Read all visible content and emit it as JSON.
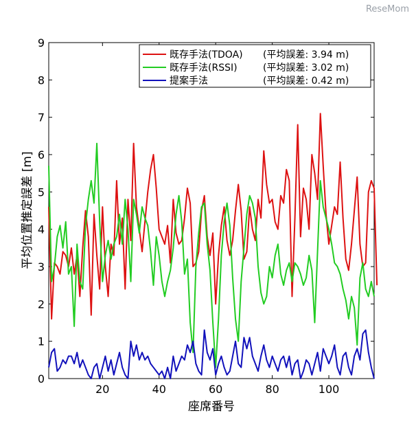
{
  "watermark": "ReseMom",
  "chart_data": {
    "type": "line",
    "title": "",
    "xlabel": "座席番号",
    "ylabel": "平均位置推定誤差 [m]",
    "xlim": [
      1,
      116
    ],
    "ylim": [
      0,
      9
    ],
    "x_ticks": [
      20,
      40,
      60,
      80,
      100
    ],
    "y_ticks": [
      0,
      1,
      2,
      3,
      4,
      5,
      6,
      7,
      8,
      9
    ],
    "grid": false,
    "legend_position": "top-right",
    "x_start": 1,
    "series": [
      {
        "name": "既存手法(TDOA)",
        "error_label": "(平均誤差: 3.94 m)",
        "color": "#dd1111",
        "values": [
          4.6,
          1.6,
          3.1,
          3.0,
          2.8,
          3.4,
          3.3,
          3.0,
          3.5,
          2.8,
          3.3,
          2.2,
          3.5,
          4.5,
          3.8,
          1.7,
          4.4,
          3.3,
          2.4,
          4.6,
          3.0,
          2.2,
          3.6,
          3.3,
          5.3,
          3.6,
          4.3,
          2.4,
          4.8,
          3.7,
          6.3,
          4.6,
          4.0,
          3.4,
          4.2,
          5.0,
          5.6,
          6.0,
          5.1,
          4.0,
          3.8,
          3.6,
          4.1,
          3.1,
          4.8,
          3.9,
          3.6,
          3.7,
          4.3,
          5.1,
          4.7,
          3.0,
          3.1,
          3.4,
          4.5,
          4.9,
          3.8,
          3.3,
          3.9,
          2.0,
          3.3,
          4.1,
          4.6,
          3.7,
          3.3,
          3.7,
          4.5,
          5.2,
          4.5,
          3.2,
          3.4,
          4.6,
          4.0,
          3.7,
          4.8,
          4.3,
          6.1,
          5.2,
          4.7,
          4.8,
          4.2,
          4.0,
          4.9,
          4.7,
          5.6,
          5.3,
          2.2,
          4.3,
          6.8,
          3.8,
          5.1,
          4.8,
          4.0,
          6.0,
          5.5,
          4.8,
          7.1,
          5.7,
          4.4,
          3.6,
          4.1,
          4.6,
          4.4,
          5.8,
          4.3,
          3.2,
          2.9,
          3.6,
          4.5,
          5.4,
          3.6,
          3.0,
          3.1,
          5.0,
          5.3,
          5.1,
          2.5
        ],
        "description": ""
      },
      {
        "name": "既存手法(RSSI)",
        "error_label": "(平均誤差: 3.02 m)",
        "color": "#22cc22",
        "values": [
          5.7,
          2.6,
          3.0,
          3.8,
          4.1,
          3.5,
          4.2,
          2.8,
          3.0,
          1.4,
          3.6,
          2.6,
          2.4,
          4.1,
          4.8,
          5.3,
          4.7,
          6.3,
          4.2,
          2.6,
          3.3,
          3.7,
          3.2,
          3.6,
          3.8,
          4.4,
          3.6,
          4.8,
          4.0,
          2.6,
          4.8,
          4.4,
          3.9,
          4.6,
          4.3,
          4.1,
          3.4,
          2.5,
          3.8,
          3.3,
          2.6,
          2.2,
          2.6,
          2.9,
          3.5,
          4.4,
          4.9,
          4.2,
          2.8,
          3.2,
          1.5,
          0.7,
          3.0,
          3.9,
          4.6,
          4.7,
          3.6,
          2.9,
          1.5,
          0.3,
          1.6,
          3.3,
          4.2,
          4.7,
          4.1,
          2.7,
          1.6,
          1.0,
          2.6,
          3.5,
          4.4,
          4.9,
          4.7,
          4.3,
          3.0,
          2.3,
          2.0,
          2.2,
          3.0,
          2.7,
          3.3,
          3.6,
          2.8,
          2.5,
          2.9,
          3.1,
          2.6,
          3.1,
          3.0,
          2.8,
          2.5,
          2.7,
          3.3,
          2.9,
          1.5,
          3.4,
          5.3,
          4.6,
          4.3,
          4.0,
          3.6,
          3.1,
          3.0,
          2.8,
          2.4,
          2.1,
          1.6,
          2.2,
          1.9,
          0.9,
          2.7,
          3.1,
          2.4,
          2.2,
          2.6,
          2.2
        ],
        "description": ""
      },
      {
        "name": "提案手法",
        "error_label": "(平均誤差: 0.42 m)",
        "color": "#1111bb",
        "values": [
          0.3,
          0.7,
          0.8,
          0.2,
          0.3,
          0.5,
          0.4,
          0.6,
          0.6,
          0.4,
          0.7,
          0.3,
          0.5,
          0.3,
          0.1,
          0.0,
          0.3,
          0.4,
          0.0,
          0.3,
          0.6,
          0.2,
          0.5,
          0.1,
          0.4,
          0.7,
          0.3,
          0.1,
          0.0,
          1.0,
          0.6,
          0.9,
          0.5,
          0.7,
          0.5,
          0.6,
          0.4,
          0.3,
          0.2,
          0.1,
          0.2,
          0.0,
          0.3,
          0.0,
          0.6,
          0.2,
          0.4,
          0.6,
          0.5,
          0.9,
          0.7,
          1.0,
          0.4,
          0.2,
          0.1,
          1.3,
          0.7,
          0.5,
          0.8,
          0.1,
          0.4,
          0.6,
          0.3,
          0.1,
          0.2,
          0.6,
          1.0,
          0.4,
          0.3,
          1.1,
          0.8,
          1.1,
          0.6,
          0.4,
          0.2,
          0.6,
          0.9,
          0.5,
          0.3,
          0.6,
          0.4,
          0.2,
          0.5,
          0.6,
          0.3,
          0.6,
          0.1,
          0.4,
          0.5,
          0.0,
          0.2,
          0.5,
          0.4,
          0.1,
          0.4,
          0.7,
          0.2,
          0.8,
          0.6,
          0.4,
          0.6,
          0.9,
          0.3,
          0.1,
          0.6,
          0.7,
          0.3,
          0.1,
          0.6,
          0.8,
          0.5,
          1.2,
          1.3,
          0.7,
          0.3,
          0.0
        ],
        "description": ""
      }
    ]
  }
}
